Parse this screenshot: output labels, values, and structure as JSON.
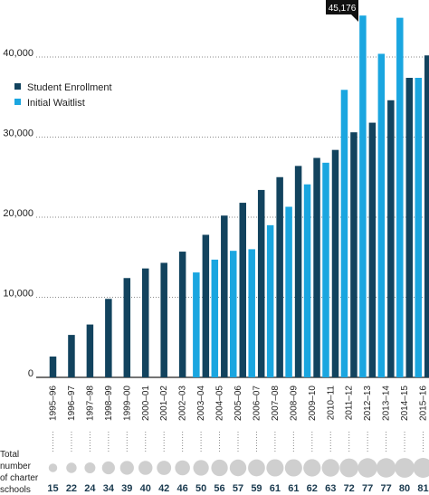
{
  "chart_data": {
    "type": "bar",
    "categories": [
      "1995–96",
      "1996–97",
      "1997–98",
      "1998–99",
      "1999–00",
      "2000–01",
      "2001–02",
      "2002–03",
      "2003–04",
      "2004–05",
      "2005–06",
      "2006–07",
      "2007–08",
      "2008–09",
      "2009–10",
      "2010–11",
      "2011–12",
      "2012–13",
      "2013–14",
      "2014–15",
      "2015–16"
    ],
    "series": [
      {
        "name": "Student Enrollment",
        "color": "#12435e",
        "values": [
          2600,
          5300,
          6600,
          9800,
          12400,
          13600,
          14300,
          15700,
          17800,
          20200,
          21800,
          23400,
          25000,
          26400,
          27400,
          28400,
          30600,
          31800,
          34600,
          37400,
          40200
        ]
      },
      {
        "name": "Initial Waitlist",
        "color": "#1aa6e0",
        "values": [
          null,
          null,
          null,
          null,
          null,
          null,
          null,
          null,
          13100,
          14700,
          15800,
          16000,
          19000,
          21300,
          24100,
          26800,
          35900,
          45176,
          40400,
          44900,
          37400
        ]
      }
    ],
    "yticks": [
      "0",
      "10,000",
      "20,000",
      "30,000",
      "40,000"
    ],
    "ylim": [
      0,
      46000
    ],
    "grid": true,
    "legend": "top-left",
    "annotation": "45,176",
    "schools_label": [
      "Total",
      "number",
      "of charter",
      "schools"
    ],
    "school_counts": [
      15,
      22,
      24,
      34,
      39,
      40,
      42,
      46,
      50,
      56,
      57,
      59,
      61,
      61,
      62,
      63,
      72,
      77,
      77,
      80,
      81
    ]
  }
}
